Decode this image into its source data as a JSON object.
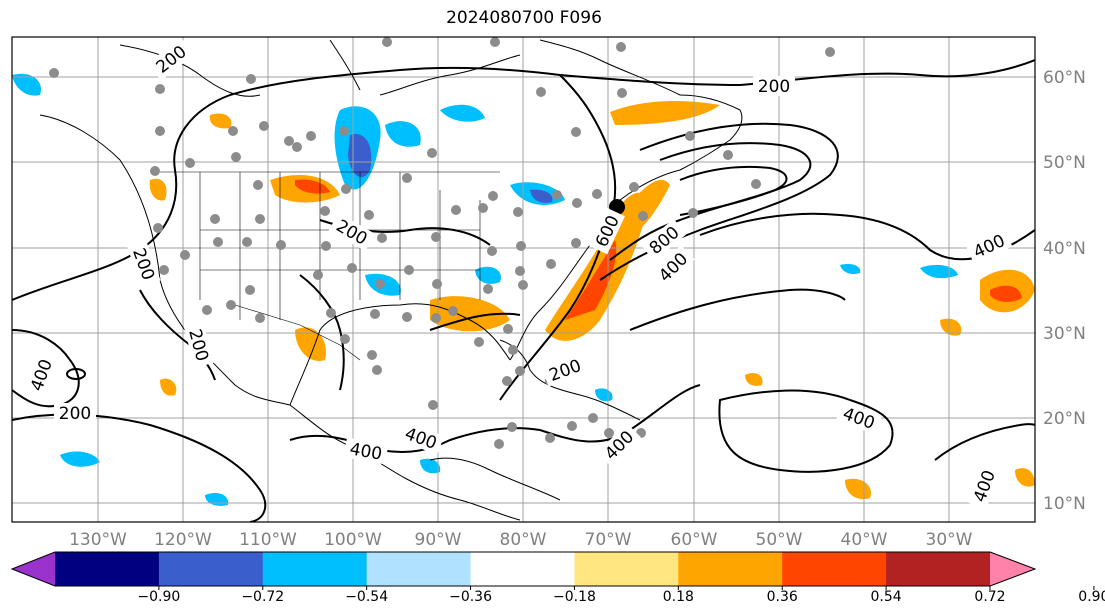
{
  "title": "2024080700 F096",
  "lat_labels": [
    "60°N",
    "50°N",
    "40°N",
    "30°N",
    "20°N",
    "10°N"
  ],
  "lon_labels": [
    "130°W",
    "120°W",
    "110°W",
    "100°W",
    "90°W",
    "80°W",
    "70°W",
    "60°W",
    "50°W",
    "40°W",
    "30°W"
  ],
  "contour_labels": [
    "200",
    "200",
    "200",
    "200",
    "200",
    "200",
    "200",
    "400",
    "400",
    "400",
    "400",
    "400",
    "400",
    "400",
    "400",
    "600",
    "800"
  ],
  "colorbar": {
    "ticks": [
      "−0.90",
      "−0.72",
      "−0.54",
      "−0.36",
      "−0.18",
      "0.18",
      "0.36",
      "0.54",
      "0.72",
      "0.90"
    ],
    "colors": [
      "#9a32cd",
      "#000080",
      "#3a5fcd",
      "#00bfff",
      "#b0e2ff",
      "#ffffff",
      "#ffe680",
      "#ffa500",
      "#ff4500",
      "#b22222",
      "#ff82ab"
    ]
  },
  "colors": {
    "contour": "#000000",
    "gridline": "#a0a0a0",
    "station_marker": "#8c8c8c",
    "highlight_marker": "#000000"
  }
}
